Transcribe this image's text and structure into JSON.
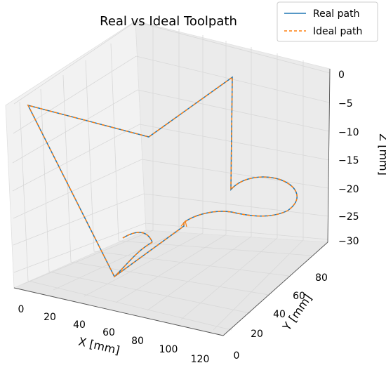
{
  "chart_data": {
    "type": "line",
    "projection": "3d",
    "title": "Real vs Ideal Toolpath",
    "xlabel": "X [mm]",
    "ylabel": "Y [mm]",
    "zlabel": "Z [mm]",
    "xticks": [
      "0",
      "20",
      "40",
      "60",
      "80",
      "100",
      "120"
    ],
    "yticks": [
      "0",
      "20",
      "40",
      "60",
      "80"
    ],
    "zticks": [
      "0",
      "−5",
      "−10",
      "−15",
      "−20",
      "−25",
      "−30"
    ],
    "grid": true,
    "legend_position": "top-right",
    "series": [
      {
        "name": "Real path",
        "color": "#1f77b4",
        "style": "solid"
      },
      {
        "name": "Ideal path",
        "color": "#ff7f0e",
        "style": "dashed"
      }
    ]
  }
}
